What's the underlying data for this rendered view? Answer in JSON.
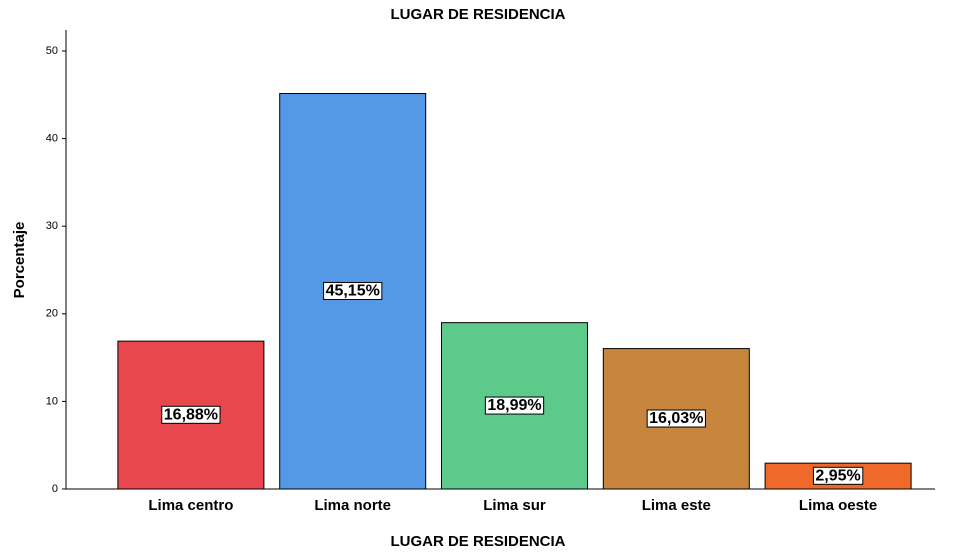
{
  "chart_data": {
    "type": "bar",
    "title": "LUGAR DE RESIDENCIA",
    "x_label": "LUGAR DE RESIDENCIA",
    "y_label": "Porcentaje",
    "categories": [
      "Lima centro",
      "Lima norte",
      "Lima sur",
      "Lima este",
      "Lima oeste"
    ],
    "values": [
      16.88,
      45.15,
      18.99,
      16.03,
      2.95
    ],
    "value_labels": [
      "16,88%",
      "45,15%",
      "18,99%",
      "16,03%",
      "2,95%"
    ],
    "colors": [
      "#e8484d",
      "#5598e6",
      "#5dc98a",
      "#c8853e",
      "#ef6a2a"
    ],
    "ylim": [
      0,
      52.4
    ],
    "yticks": [
      0,
      10,
      20,
      30,
      40,
      50
    ],
    "grid": false
  }
}
